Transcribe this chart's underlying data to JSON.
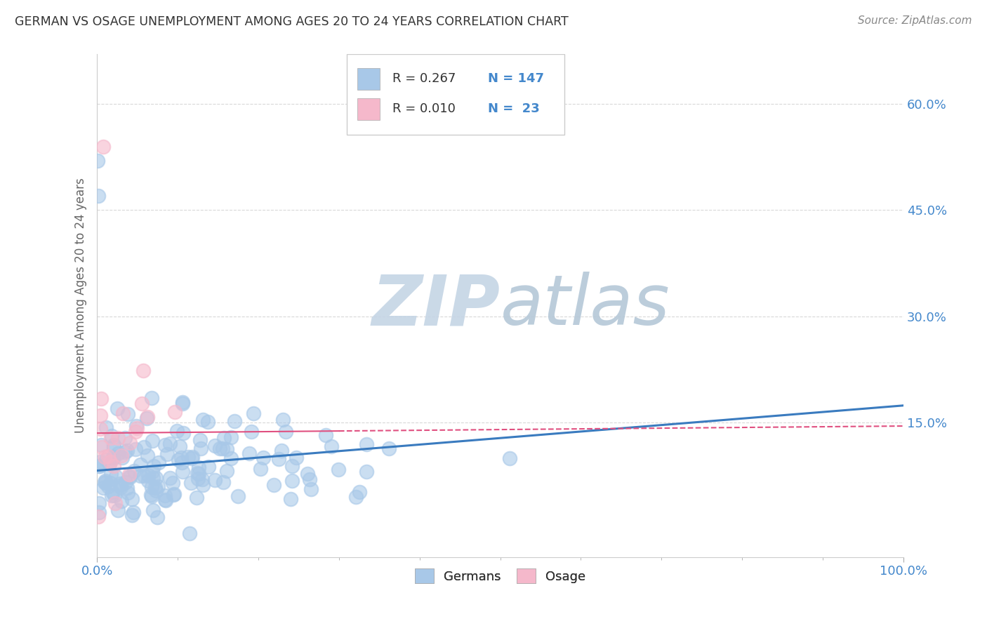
{
  "title": "GERMAN VS OSAGE UNEMPLOYMENT AMONG AGES 20 TO 24 YEARS CORRELATION CHART",
  "source": "Source: ZipAtlas.com",
  "ylabel": "Unemployment Among Ages 20 to 24 years",
  "xlim": [
    0.0,
    1.0
  ],
  "ylim": [
    -0.04,
    0.67
  ],
  "xtick_labels": [
    "0.0%",
    "100.0%"
  ],
  "xtick_positions": [
    0.0,
    1.0
  ],
  "ytick_labels": [
    "15.0%",
    "30.0%",
    "45.0%",
    "60.0%"
  ],
  "ytick_positions": [
    0.15,
    0.3,
    0.45,
    0.6
  ],
  "german_R": 0.267,
  "german_N": 147,
  "osage_R": 0.01,
  "osage_N": 23,
  "german_color": "#a8c8e8",
  "osage_color": "#f5b8cb",
  "german_line_color": "#3a7bbf",
  "osage_line_color": "#e05080",
  "background_color": "#ffffff",
  "grid_color": "#d8d8d8",
  "watermark_zip_color": "#c8d8e8",
  "watermark_atlas_color": "#b8c8d8",
  "legend_labels": [
    "Germans",
    "Osage"
  ],
  "title_color": "#333333",
  "axis_label_color": "#666666",
  "tick_label_color": "#4488cc",
  "source_color": "#888888"
}
